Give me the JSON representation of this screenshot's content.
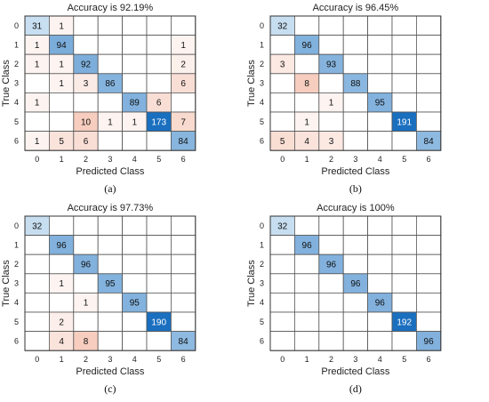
{
  "chart_data": [
    {
      "type": "heatmap",
      "title": "Accuracy is 92.19%",
      "xlabel": "Predicted Class",
      "ylabel": "True Class",
      "caption": "(a)",
      "x_categories": [
        "0",
        "1",
        "2",
        "3",
        "4",
        "5",
        "6"
      ],
      "y_categories": [
        "0",
        "1",
        "2",
        "3",
        "4",
        "5",
        "6"
      ],
      "matrix": [
        [
          31,
          1,
          null,
          null,
          null,
          null,
          null
        ],
        [
          1,
          94,
          null,
          null,
          null,
          null,
          1
        ],
        [
          1,
          1,
          92,
          null,
          null,
          null,
          2
        ],
        [
          null,
          1,
          3,
          86,
          null,
          null,
          6
        ],
        [
          1,
          null,
          null,
          null,
          89,
          6,
          null
        ],
        [
          null,
          null,
          10,
          1,
          1,
          173,
          7
        ],
        [
          1,
          5,
          6,
          null,
          null,
          null,
          84
        ]
      ]
    },
    {
      "type": "heatmap",
      "title": "Accuracy is 96.45%",
      "xlabel": "Predicted Class",
      "ylabel": "True Class",
      "caption": "(b)",
      "x_categories": [
        "0",
        "1",
        "2",
        "3",
        "4",
        "5",
        "6"
      ],
      "y_categories": [
        "0",
        "1",
        "2",
        "3",
        "4",
        "5",
        "6"
      ],
      "matrix": [
        [
          32,
          null,
          null,
          null,
          null,
          null,
          null
        ],
        [
          null,
          96,
          null,
          null,
          null,
          null,
          null
        ],
        [
          3,
          null,
          93,
          null,
          null,
          null,
          null
        ],
        [
          null,
          8,
          null,
          88,
          null,
          null,
          null
        ],
        [
          null,
          null,
          1,
          null,
          95,
          null,
          null
        ],
        [
          null,
          1,
          null,
          null,
          null,
          191,
          null
        ],
        [
          5,
          4,
          3,
          null,
          null,
          null,
          84
        ]
      ]
    },
    {
      "type": "heatmap",
      "title": "Accuracy is 97.73%",
      "xlabel": "Predicted Class",
      "ylabel": "True Class",
      "caption": "(c)",
      "x_categories": [
        "0",
        "1",
        "2",
        "3",
        "4",
        "5",
        "6"
      ],
      "y_categories": [
        "0",
        "1",
        "2",
        "3",
        "4",
        "5",
        "6"
      ],
      "matrix": [
        [
          32,
          null,
          null,
          null,
          null,
          null,
          null
        ],
        [
          null,
          96,
          null,
          null,
          null,
          null,
          null
        ],
        [
          null,
          null,
          96,
          null,
          null,
          null,
          null
        ],
        [
          null,
          1,
          null,
          95,
          null,
          null,
          null
        ],
        [
          null,
          null,
          1,
          null,
          95,
          null,
          null
        ],
        [
          null,
          2,
          null,
          null,
          null,
          190,
          null
        ],
        [
          null,
          4,
          8,
          null,
          null,
          null,
          84
        ]
      ]
    },
    {
      "type": "heatmap",
      "title": "Accuracy is 100%",
      "xlabel": "Predicted Class",
      "ylabel": "True Class",
      "caption": "(d)",
      "x_categories": [
        "0",
        "1",
        "2",
        "3",
        "4",
        "5",
        "6"
      ],
      "y_categories": [
        "0",
        "1",
        "2",
        "3",
        "4",
        "5",
        "6"
      ],
      "matrix": [
        [
          32,
          null,
          null,
          null,
          null,
          null,
          null
        ],
        [
          null,
          96,
          null,
          null,
          null,
          null,
          null
        ],
        [
          null,
          null,
          96,
          null,
          null,
          null,
          null
        ],
        [
          null,
          null,
          null,
          96,
          null,
          null,
          null
        ],
        [
          null,
          null,
          null,
          null,
          96,
          null,
          null
        ],
        [
          null,
          null,
          null,
          null,
          null,
          192,
          null
        ],
        [
          null,
          null,
          null,
          null,
          null,
          null,
          96
        ]
      ]
    }
  ],
  "colors": {
    "grid_line": "#555555",
    "empty_cell": "#ffffff",
    "offdiag_min": "#fdf4f1",
    "offdiag_max": "#f6cdbe",
    "diag_min": "#c9dff1",
    "diag_max": "#1a6fbf",
    "text_dark": "#111111",
    "text_light": "#ffffff"
  }
}
